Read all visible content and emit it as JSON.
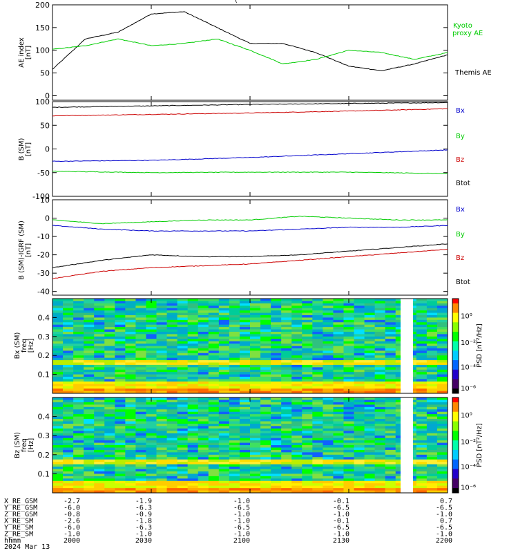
{
  "header_fragment": "(",
  "panels": {
    "ae": {
      "ylabel_top": "AE index",
      "ylabel_unit": "[nT]",
      "ylim": [
        -10,
        200
      ],
      "yticks": [
        0,
        50,
        100,
        150,
        200
      ],
      "legend": [
        {
          "text": "Kyoto",
          "color": "#00cc00"
        },
        {
          "text": "proxy AE",
          "color": "#00cc00"
        },
        {
          "text": "Themis AE",
          "color": "#000000"
        }
      ]
    },
    "bsm": {
      "ylabel_top": "B (SM)",
      "ylabel_unit": "[nT]",
      "ylim": [
        -100,
        100
      ],
      "yticks": [
        -100,
        -50,
        0,
        50,
        100
      ],
      "legend": [
        {
          "text": "Bx",
          "color": "#0000cc"
        },
        {
          "text": "By",
          "color": "#00cc00"
        },
        {
          "text": "Bz",
          "color": "#cc0000"
        },
        {
          "text": "Btot",
          "color": "#000000"
        }
      ]
    },
    "bigrf": {
      "ylabel_top": "B (SM)-IGRF (SM)",
      "ylabel_unit": "[nT]",
      "ylim": [
        -42,
        10
      ],
      "yticks": [
        -40,
        -30,
        -20,
        -10,
        0,
        10
      ],
      "legend": [
        {
          "text": "Bx",
          "color": "#0000cc"
        },
        {
          "text": "By",
          "color": "#00cc00"
        },
        {
          "text": "Bz",
          "color": "#cc0000"
        },
        {
          "text": "Btot",
          "color": "#000000"
        }
      ]
    },
    "spec1": {
      "ylabel_top": "Bx (SM)",
      "ylabel_mid": "freq",
      "ylabel_unit": "[Hz]",
      "yticks": [
        "0.1",
        "0.2",
        "0.3",
        "0.4"
      ],
      "cb_label": "PSD [nT²/Hz]",
      "cb_ticks": [
        "10⁰",
        "10⁻²",
        "10⁻⁴",
        "10⁻⁶"
      ]
    },
    "spec2": {
      "ylabel_top": "Bz (SM)",
      "ylabel_mid": "freq",
      "ylabel_unit": "[Hz]",
      "yticks": [
        "0.1",
        "0.2",
        "0.3",
        "0.4"
      ],
      "cb_label": "PSD [nT²/Hz]",
      "cb_ticks": [
        "10⁰",
        "10⁻²",
        "10⁻⁴",
        "10⁻⁶"
      ]
    }
  },
  "ephemeris": {
    "rows": [
      {
        "label": "X_RE_GSM",
        "values": [
          "-2.7",
          "-1.9",
          "-1.0",
          "-0.1",
          "0.7"
        ]
      },
      {
        "label": "Y_RE_GSM",
        "values": [
          "-6.0",
          "-6.3",
          "-6.5",
          "-6.5",
          "-6.5"
        ]
      },
      {
        "label": "Z_RE_GSM",
        "values": [
          "-0.8",
          "-0.9",
          "-1.0",
          "-1.0",
          "-1.0"
        ]
      },
      {
        "label": "X_RE_SM",
        "values": [
          "-2.6",
          "-1.8",
          "-1.0",
          "-0.1",
          "0.7"
        ]
      },
      {
        "label": "Y_RE_SM",
        "values": [
          "-6.0",
          "-6.3",
          "-6.5",
          "-6.5",
          "-6.5"
        ]
      },
      {
        "label": "Z_RE_SM",
        "values": [
          "-1.0",
          "-1.0",
          "-1.0",
          "-1.0",
          "-1.0"
        ]
      },
      {
        "label": "hhmm",
        "values": [
          "2000",
          "2030",
          "2100",
          "2130",
          "2200"
        ]
      }
    ],
    "date": "2024 Mar 13"
  },
  "chart_data": [
    {
      "type": "line",
      "x": [
        "2000",
        "2010",
        "2020",
        "2030",
        "2040",
        "2050",
        "2100",
        "2110",
        "2120",
        "2130",
        "2140",
        "2150",
        "2200"
      ],
      "series": [
        {
          "name": "Themis AE",
          "color": "#000000",
          "values": [
            58,
            125,
            140,
            180,
            185,
            150,
            115,
            115,
            95,
            65,
            55,
            70,
            90
          ]
        },
        {
          "name": "Kyoto proxy AE",
          "color": "#00cc00",
          "values": [
            102,
            110,
            125,
            110,
            115,
            125,
            100,
            70,
            80,
            100,
            95,
            80,
            95
          ]
        }
      ],
      "ylabel": "AE index [nT]",
      "ylim": [
        -10,
        200
      ],
      "legend_position": "right"
    },
    {
      "type": "line",
      "x": [
        "2000",
        "2030",
        "2100",
        "2130",
        "2200"
      ],
      "series": [
        {
          "name": "Btot",
          "color": "#000000",
          "values": [
            88,
            91,
            94,
            96,
            98
          ]
        },
        {
          "name": "Bz",
          "color": "#cc0000",
          "values": [
            70,
            73,
            76,
            80,
            85
          ]
        },
        {
          "name": "Bx",
          "color": "#0000cc",
          "values": [
            -26,
            -24,
            -18,
            -10,
            -2
          ]
        },
        {
          "name": "By",
          "color": "#00cc00",
          "values": [
            -47,
            -50,
            -49,
            -49,
            -52
          ]
        }
      ],
      "ylabel": "B (SM) [nT]",
      "ylim": [
        -100,
        100
      ],
      "legend_position": "right"
    },
    {
      "type": "line",
      "x": [
        "2000",
        "2015",
        "2030",
        "2045",
        "2100",
        "2115",
        "2130",
        "2145",
        "2200"
      ],
      "series": [
        {
          "name": "By",
          "color": "#00cc00",
          "values": [
            -1,
            -3,
            -2,
            -1,
            -1,
            1,
            0,
            -1,
            -1
          ]
        },
        {
          "name": "Bx",
          "color": "#0000cc",
          "values": [
            -4,
            -6,
            -7,
            -7,
            -7,
            -6,
            -5,
            -5,
            -4
          ]
        },
        {
          "name": "Btot",
          "color": "#000000",
          "values": [
            -27,
            -23,
            -20,
            -21,
            -21,
            -20,
            -18,
            -16,
            -14
          ]
        },
        {
          "name": "Bz",
          "color": "#cc0000",
          "values": [
            -33,
            -29,
            -27,
            -26,
            -25,
            -23,
            -21,
            -19,
            -17
          ]
        }
      ],
      "ylabel": "B (SM)-IGRF (SM) [nT]",
      "ylim": [
        -42,
        10
      ],
      "legend_position": "right"
    },
    {
      "type": "heatmap",
      "title": "Bx (SM) freq [Hz]",
      "x_range": [
        "2000",
        "2200"
      ],
      "y_range": [
        0,
        0.5
      ],
      "colorbar": "PSD [nT²/Hz]",
      "data_gap": true
    },
    {
      "type": "heatmap",
      "title": "Bz (SM) freq [Hz]",
      "x_range": [
        "2000",
        "2200"
      ],
      "y_range": [
        0,
        0.5
      ],
      "colorbar": "PSD [nT²/Hz]",
      "data_gap": true
    }
  ]
}
